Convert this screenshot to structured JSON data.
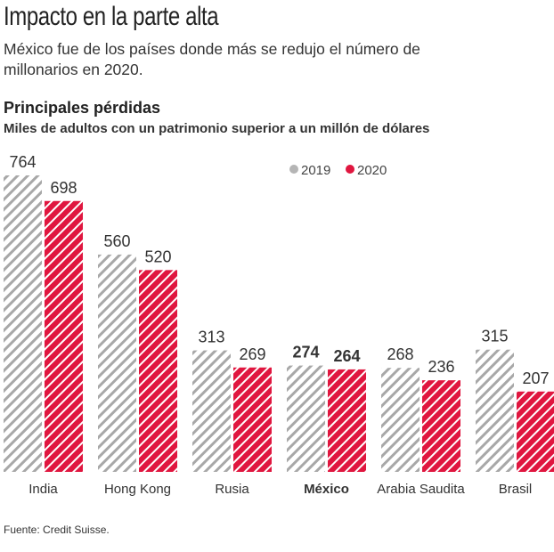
{
  "header": {
    "title": "Impacto en la parte alta",
    "subtitle": "México fue de los países donde más se redujo el número de millonarios en 2020.",
    "section": "Principales pérdidas",
    "unit": "Miles de adultos con un patrimonio superior a un millón de dólares"
  },
  "source": "Fuente: Credit Suisse.",
  "chart_data": {
    "type": "bar",
    "categories": [
      "India",
      "Hong Kong",
      "Rusia",
      "México",
      "Arabia Saudita",
      "Brasil"
    ],
    "highlight_category": "México",
    "series": [
      {
        "name": "2019",
        "values": [
          764,
          560,
          313,
          274,
          268,
          315
        ],
        "color": "#b5b5b5",
        "pattern": "hatched"
      },
      {
        "name": "2020",
        "values": [
          698,
          520,
          269,
          264,
          236,
          207
        ],
        "color": "#e0163f",
        "pattern": "hatched"
      }
    ],
    "legend": "top-right",
    "grid": false,
    "ylim": [
      0,
      764
    ]
  }
}
